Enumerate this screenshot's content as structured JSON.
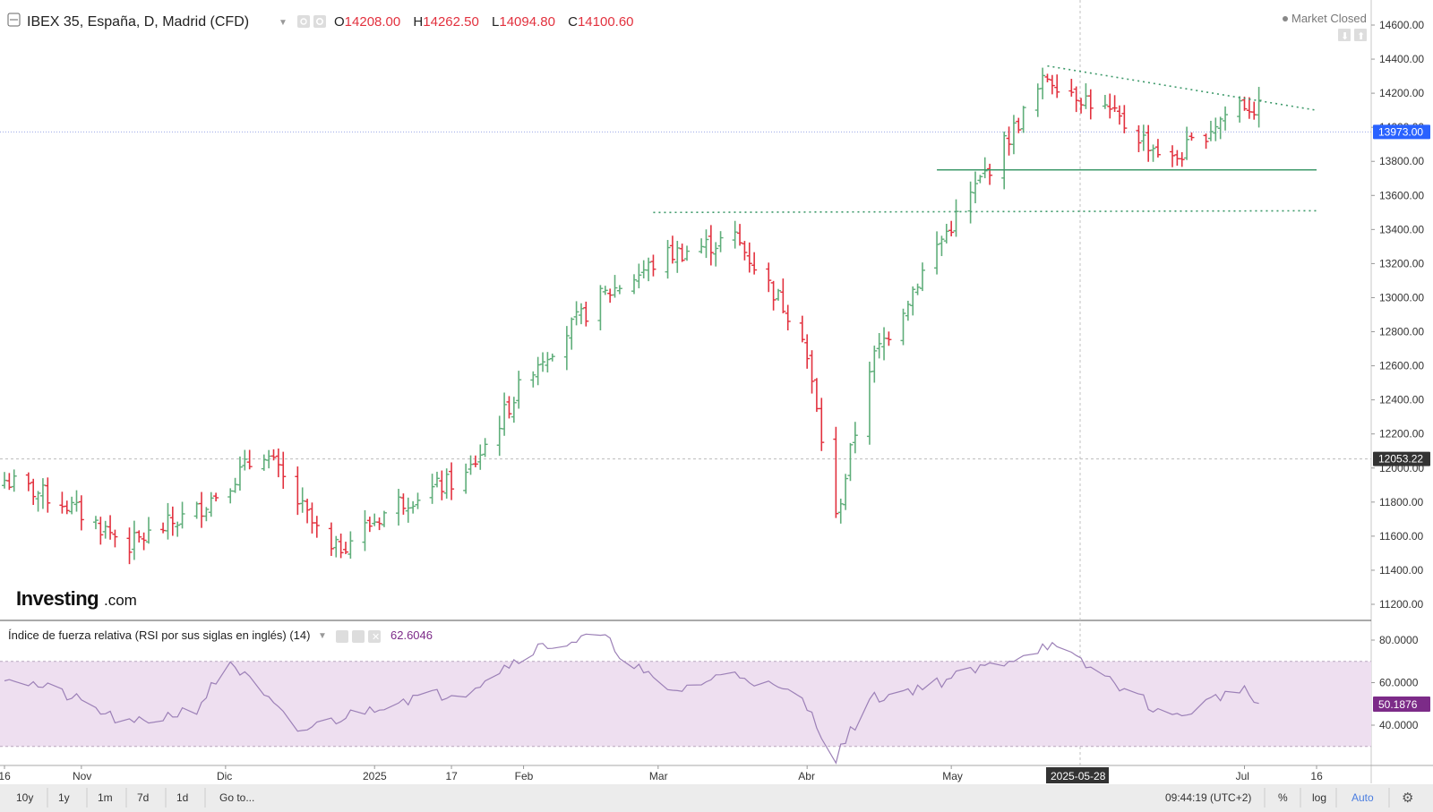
{
  "header": {
    "title": "IBEX 35, España, D, Madrid (CFD)",
    "o_label": "O",
    "o_value": "14208.00",
    "h_label": "H",
    "h_value": "14262.50",
    "l_label": "L",
    "l_value": "14094.80",
    "c_label": "C",
    "c_value": "14100.60",
    "status": "Market Closed"
  },
  "brand": {
    "main": "Investing",
    "suffix": ".com"
  },
  "price_axis": {
    "ticks": [
      "14600.00",
      "14400.00",
      "14200.00",
      "14000.00",
      "13800.00",
      "13600.00",
      "13400.00",
      "13200.00",
      "13000.00",
      "12800.00",
      "12600.00",
      "12400.00",
      "12200.00",
      "12000.00",
      "11800.00",
      "11600.00",
      "11400.00",
      "11200.00"
    ],
    "tick_values": [
      14600,
      14400,
      14200,
      14000,
      13800,
      13600,
      13400,
      13200,
      13000,
      12800,
      12600,
      12400,
      12200,
      12000,
      11800,
      11600,
      11400,
      11200
    ],
    "current_label": "13973.00",
    "current_value": 13973,
    "crosshair_label": "12053.22",
    "crosshair_value": 12053.22
  },
  "rsi": {
    "title": "Índice de fuerza relativa (RSI por sus siglas en inglés) (14)",
    "value": "62.6046",
    "ticks": [
      "80.0000",
      "60.0000",
      "40.0000"
    ],
    "tick_values": [
      80,
      60,
      40
    ],
    "current_label": "50.1876",
    "band": [
      30,
      70
    ],
    "colors": {
      "band": "#eedff0",
      "line": "#9c80b7",
      "label_bg": "#7c2b88"
    }
  },
  "time_axis": {
    "labels": [
      "16",
      "Nov",
      "Dic",
      "2025",
      "17",
      "Feb",
      "Mar",
      "Abr",
      "May",
      "Jul",
      "16"
    ],
    "highlight": "2025-05-28"
  },
  "toolbar": {
    "ranges": [
      "10y",
      "1y",
      "1m",
      "7d",
      "1d"
    ],
    "goto": "Go to...",
    "time": "09:44:19 (UTC+2)",
    "pct": "%",
    "log": "log",
    "auto": "Auto",
    "settings_icon": "gear-icon"
  },
  "colors": {
    "up": "#5fae7a",
    "down": "#e2313e",
    "trend": "#3e9a6b",
    "price_label_bg": "#2962ff"
  },
  "chart_data": [
    {
      "type": "ohlc",
      "title": "IBEX 35, España, D, Madrid (CFD)",
      "ylim": [
        11100,
        14700
      ],
      "x_range": [
        "2024-10-16",
        "2025-07-16"
      ],
      "series": [
        {
          "name": "IBEX 35",
          "x": [
            "2024-10-14",
            "2024-10-28",
            "2024-11-11",
            "2024-11-25",
            "2024-12-09",
            "2024-12-23",
            "2025-01-06",
            "2025-01-20",
            "2025-02-03",
            "2025-02-17",
            "2025-03-03",
            "2025-03-17",
            "2025-03-31",
            "2025-04-07",
            "2025-04-14",
            "2025-04-28",
            "2025-05-12",
            "2025-05-21",
            "2025-06-02",
            "2025-06-16",
            "2025-06-30",
            "2025-07-04"
          ],
          "close": [
            11950,
            11800,
            11550,
            11750,
            12100,
            11500,
            11800,
            11950,
            12600,
            13000,
            13250,
            13350,
            12800,
            11700,
            12600,
            13300,
            13900,
            14300,
            14100,
            13800,
            14150,
            14100
          ]
        }
      ],
      "trendlines": [
        {
          "from": [
            "2025-05-21",
            14360
          ],
          "to": [
            "2025-07-16",
            14100
          ],
          "style": "dotted"
        },
        {
          "from": [
            "2025-04-28",
            13750
          ],
          "to": [
            "2025-07-16",
            13750
          ],
          "style": "solid"
        },
        {
          "from": [
            "2025-02-28",
            13500
          ],
          "to": [
            "2025-07-16",
            13510
          ],
          "style": "dotted"
        }
      ],
      "annotations": [
        {
          "text": "Market Closed"
        }
      ]
    },
    {
      "type": "line",
      "title": "Índice de fuerza relativa (RSI por sus siglas en inglés) (14)",
      "ylim": [
        25,
        85
      ],
      "x_range": [
        "2024-10-16",
        "2025-07-16"
      ],
      "series": [
        {
          "name": "RSI (14)",
          "x": [
            "2024-10-14",
            "2024-10-28",
            "2024-11-11",
            "2024-11-25",
            "2024-12-02",
            "2024-12-16",
            "2025-01-06",
            "2025-01-20",
            "2025-02-03",
            "2025-02-17",
            "2025-03-03",
            "2025-03-17",
            "2025-03-31",
            "2025-04-07",
            "2025-04-14",
            "2025-04-28",
            "2025-05-12",
            "2025-05-21",
            "2025-06-02",
            "2025-06-16",
            "2025-06-30",
            "2025-07-04"
          ],
          "values": [
            65,
            55,
            40,
            48,
            70,
            37,
            52,
            56,
            76,
            82,
            55,
            65,
            52,
            25,
            52,
            60,
            70,
            78,
            63,
            43,
            58,
            50
          ]
        }
      ],
      "band": [
        30,
        70
      ]
    }
  ]
}
